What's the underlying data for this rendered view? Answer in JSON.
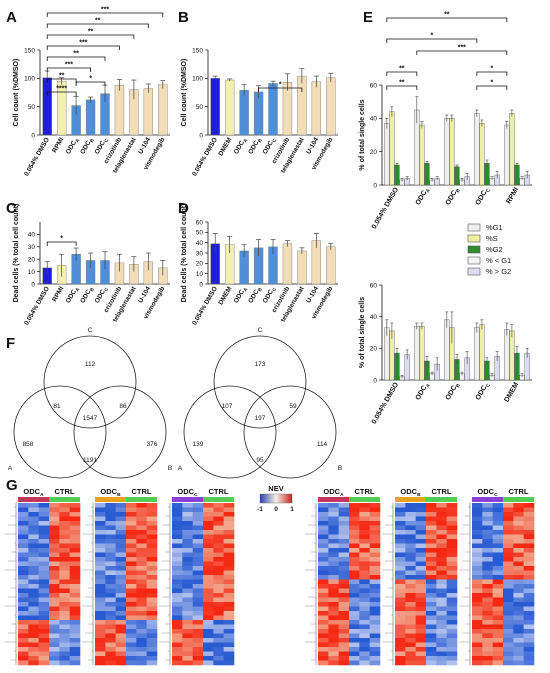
{
  "panels": {
    "A": {
      "letter": "A",
      "ylabel": "Cell count (%DMSO)",
      "ylim": [
        0,
        150
      ],
      "yticks": [
        0,
        50,
        100,
        150
      ],
      "categories": [
        "0.054% DMSO",
        "RPMI",
        "ODCA",
        "ODCB",
        "ODCC",
        "crizotinib",
        "telaglenastat",
        "U-104",
        "vismodegib"
      ],
      "values": [
        101,
        95,
        52,
        62,
        73,
        88,
        80,
        82,
        89
      ],
      "errors": [
        12,
        6,
        16,
        5,
        15,
        10,
        17,
        8,
        7
      ],
      "colors": [
        "#1f1fd6",
        "#f4f0b0",
        "#4f8fd8",
        "#4f8fd8",
        "#4f8fd8",
        "#f3dcb8",
        "#f3dcb8",
        "#f3dcb8",
        "#f3dcb8"
      ],
      "significance": [
        "***",
        "**",
        "**",
        "***",
        "**",
        "***",
        "**",
        "****",
        "*"
      ]
    },
    "B": {
      "letter": "B",
      "ylabel": "Cell count (%DMSO)",
      "ylim": [
        0,
        150
      ],
      "yticks": [
        0,
        50,
        100,
        150
      ],
      "categories": [
        "0.054% DMSO",
        "DMEM",
        "ODCA",
        "ODCB",
        "ODCC",
        "crizotinib",
        "telaglenastat",
        "U-104",
        "vismodegib"
      ],
      "values": [
        100,
        97,
        79,
        76,
        91,
        93,
        104,
        94,
        101
      ],
      "errors": [
        4,
        2,
        10,
        11,
        4,
        15,
        13,
        10,
        8
      ],
      "colors": [
        "#1f1fd6",
        "#f4f0b0",
        "#4f8fd8",
        "#4f8fd8",
        "#4f8fd8",
        "#f3dcb8",
        "#f3dcb8",
        "#f3dcb8",
        "#f3dcb8"
      ],
      "significance": [
        "*"
      ]
    },
    "C": {
      "letter": "C",
      "ylabel": "Dead cells (% total cell count)",
      "ylim": [
        0,
        50
      ],
      "yticks": [
        0,
        10,
        20,
        30,
        40
      ],
      "categories": [
        "0.054% DMSO",
        "RPMI",
        "ODCA",
        "ODCB",
        "ODCC",
        "crizotinib",
        "telaglenastat",
        "U-104",
        "vismodegib"
      ],
      "values": [
        13,
        15,
        24,
        19,
        19,
        17,
        16,
        18,
        13
      ],
      "errors": [
        5,
        9,
        5,
        6,
        7,
        7,
        6,
        7,
        6
      ],
      "colors": [
        "#1f1fd6",
        "#f4f0b0",
        "#4f8fd8",
        "#4f8fd8",
        "#4f8fd8",
        "#f3dcb8",
        "#f3dcb8",
        "#f3dcb8",
        "#f3dcb8"
      ],
      "significance": [
        "*"
      ]
    },
    "D": {
      "letter": "D",
      "ylabel": "Dead cells (% total cell count)",
      "ylim": [
        0,
        60
      ],
      "yticks": [
        0,
        10,
        20,
        30,
        40,
        50,
        60
      ],
      "categories": [
        "0.054% DMSO",
        "DMEM",
        "ODCA",
        "ODCB",
        "ODCC",
        "crizotinib",
        "telaglenastat",
        "U-104",
        "vismodegib"
      ],
      "values": [
        39,
        38,
        32,
        35,
        36,
        39,
        32,
        42,
        36
      ],
      "errors": [
        10,
        8,
        6,
        8,
        7,
        3,
        3,
        7,
        3
      ],
      "colors": [
        "#1f1fd6",
        "#f4f0b0",
        "#4f8fd8",
        "#4f8fd8",
        "#4f8fd8",
        "#f3dcb8",
        "#f3dcb8",
        "#f3dcb8",
        "#f3dcb8"
      ]
    },
    "E": {
      "letter": "E",
      "ylabel": "% of total single cells",
      "ylim": [
        0,
        60
      ],
      "yticks": [
        0,
        20,
        40,
        60
      ],
      "legend": [
        "%G1",
        "%S",
        "%G2",
        "% < G1",
        "% > G2"
      ],
      "series_colors": [
        "#efefef",
        "#f0eea0",
        "#2e8b2e",
        "#f4f4f4",
        "#dcdcf4"
      ],
      "top": {
        "categories": [
          "0.054% DMSO",
          "ODCA",
          "ODCB",
          "ODCC",
          "RPMI"
        ],
        "values": [
          [
            37,
            44,
            12,
            3,
            4
          ],
          [
            45,
            36,
            13,
            3,
            4
          ],
          [
            40,
            40,
            11,
            3,
            5
          ],
          [
            43,
            37,
            13,
            4,
            6
          ],
          [
            36,
            43,
            12,
            4,
            6
          ]
        ],
        "errors": [
          [
            3,
            3,
            1,
            1,
            1
          ],
          [
            8,
            2,
            1,
            1,
            1
          ],
          [
            2,
            2,
            1,
            1,
            2
          ],
          [
            2,
            2,
            2,
            1,
            2
          ],
          [
            2,
            2,
            1,
            1,
            2
          ]
        ],
        "significance": [
          "**",
          "*",
          "***",
          "**",
          "**",
          "*",
          "*"
        ]
      },
      "bottom": {
        "categories": [
          "0.054% DMSO",
          "ODCA",
          "ODCB",
          "ODCC",
          "DMEM"
        ],
        "values": [
          [
            33,
            31,
            17,
            2,
            16
          ],
          [
            34,
            34,
            12,
            4,
            10
          ],
          [
            38,
            33,
            13,
            4,
            14
          ],
          [
            33,
            35,
            12,
            3,
            15
          ],
          [
            32,
            31,
            17,
            3,
            17
          ]
        ],
        "errors": [
          [
            5,
            5,
            3,
            1,
            3
          ],
          [
            2,
            2,
            3,
            1,
            4
          ],
          [
            5,
            10,
            3,
            1,
            4
          ],
          [
            3,
            3,
            2,
            1,
            3
          ],
          [
            4,
            4,
            4,
            1,
            3
          ]
        ]
      }
    },
    "F": {
      "letter": "F",
      "venns": [
        {
          "top": "C",
          "left": "A",
          "right": "B",
          "c_only": "112",
          "ac": "81",
          "bc": "86",
          "abc": "1547",
          "a_only": "858",
          "b_only": "376",
          "ab": "1191"
        },
        {
          "top": "C",
          "left": "A",
          "right": "B",
          "c_only": "173",
          "ac": "107",
          "bc": "59",
          "abc": "197",
          "a_only": "139",
          "b_only": "114",
          "ab": "95"
        }
      ]
    },
    "G": {
      "letter": "G",
      "heatmap_headers": [
        [
          "ODCA",
          "CTRL"
        ],
        [
          "ODCB",
          "CTRL"
        ],
        [
          "ODCC",
          "CTRL"
        ],
        [
          "ODCA",
          "CTRL"
        ],
        [
          "ODCB",
          "CTRL"
        ],
        [
          "ODCC",
          "CTRL"
        ]
      ],
      "header_colors": {
        "ODCA": "#c4365a",
        "ODCB": "#e8a020",
        "ODCC": "#8a3fd6",
        "CTRL": "#55cc55"
      },
      "legend_title": "NEV",
      "legend_ticks": [
        "-1",
        "0",
        "1"
      ]
    }
  },
  "chart_data": [
    {
      "panel": "A",
      "type": "bar",
      "ylabel": "Cell count (%DMSO)",
      "ylim": [
        0,
        150
      ],
      "categories": [
        "0.054% DMSO",
        "RPMI",
        "ODCA",
        "ODCB",
        "ODCC",
        "crizotinib",
        "telaglenastat",
        "U-104",
        "vismodegib"
      ],
      "values": [
        101,
        95,
        52,
        62,
        73,
        88,
        80,
        82,
        89
      ]
    },
    {
      "panel": "B",
      "type": "bar",
      "ylabel": "Cell count (%DMSO)",
      "ylim": [
        0,
        150
      ],
      "categories": [
        "0.054% DMSO",
        "DMEM",
        "ODCA",
        "ODCB",
        "ODCC",
        "crizotinib",
        "telaglenastat",
        "U-104",
        "vismodegib"
      ],
      "values": [
        100,
        97,
        79,
        76,
        91,
        93,
        104,
        94,
        101
      ]
    },
    {
      "panel": "C",
      "type": "bar",
      "ylabel": "Dead cells (% total cell count)",
      "ylim": [
        0,
        50
      ],
      "categories": [
        "0.054% DMSO",
        "RPMI",
        "ODCA",
        "ODCB",
        "ODCC",
        "crizotinib",
        "telaglenastat",
        "U-104",
        "vismodegib"
      ],
      "values": [
        13,
        15,
        24,
        19,
        19,
        17,
        16,
        18,
        13
      ]
    },
    {
      "panel": "D",
      "type": "bar",
      "ylabel": "Dead cells (% total cell count)",
      "ylim": [
        0,
        60
      ],
      "categories": [
        "0.054% DMSO",
        "DMEM",
        "ODCA",
        "ODCB",
        "ODCC",
        "crizotinib",
        "telaglenastat",
        "U-104",
        "vismodegib"
      ],
      "values": [
        39,
        38,
        32,
        35,
        36,
        39,
        32,
        42,
        36
      ]
    },
    {
      "panel": "E-top",
      "type": "bar",
      "ylabel": "% of total single cells",
      "ylim": [
        0,
        60
      ],
      "categories": [
        "0.054% DMSO",
        "ODCA",
        "ODCB",
        "ODCC",
        "RPMI"
      ],
      "series": [
        {
          "name": "%G1",
          "values": [
            37,
            45,
            40,
            43,
            36
          ]
        },
        {
          "name": "%S",
          "values": [
            44,
            36,
            40,
            37,
            43
          ]
        },
        {
          "name": "%G2",
          "values": [
            12,
            13,
            11,
            13,
            12
          ]
        },
        {
          "name": "% < G1",
          "values": [
            3,
            3,
            3,
            4,
            4
          ]
        },
        {
          "name": "% > G2",
          "values": [
            4,
            4,
            5,
            6,
            6
          ]
        }
      ]
    },
    {
      "panel": "E-bottom",
      "type": "bar",
      "ylabel": "% of total single cells",
      "ylim": [
        0,
        60
      ],
      "categories": [
        "0.054% DMSO",
        "ODCA",
        "ODCB",
        "ODCC",
        "DMEM"
      ],
      "series": [
        {
          "name": "%G1",
          "values": [
            33,
            34,
            38,
            33,
            32
          ]
        },
        {
          "name": "%S",
          "values": [
            31,
            34,
            33,
            35,
            31
          ]
        },
        {
          "name": "%G2",
          "values": [
            17,
            12,
            13,
            12,
            17
          ]
        },
        {
          "name": "% < G1",
          "values": [
            2,
            4,
            4,
            3,
            3
          ]
        },
        {
          "name": "% > G2",
          "values": [
            16,
            10,
            14,
            15,
            17
          ]
        }
      ]
    }
  ]
}
